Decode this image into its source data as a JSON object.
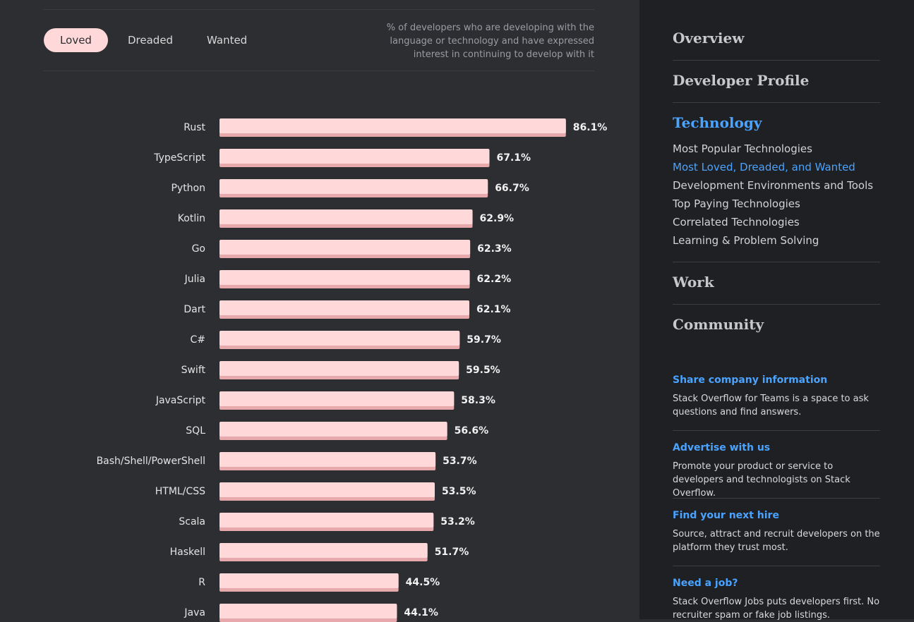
{
  "tabs": [
    {
      "label": "Loved",
      "active": true
    },
    {
      "label": "Dreaded",
      "active": false
    },
    {
      "label": "Wanted",
      "active": false
    }
  ],
  "description": "% of developers who are developing with the language or technology and have expressed interest in continuing to develop with it",
  "chart_data": {
    "type": "bar",
    "orientation": "horizontal",
    "categories": [
      "Rust",
      "TypeScript",
      "Python",
      "Kotlin",
      "Go",
      "Julia",
      "Dart",
      "C#",
      "Swift",
      "JavaScript",
      "SQL",
      "Bash/Shell/PowerShell",
      "HTML/CSS",
      "Scala",
      "Haskell",
      "R",
      "Java"
    ],
    "values": [
      86.1,
      67.1,
      66.7,
      62.9,
      62.3,
      62.2,
      62.1,
      59.7,
      59.5,
      58.3,
      56.6,
      53.7,
      53.5,
      53.2,
      51.7,
      44.5,
      44.1
    ],
    "labels": [
      "86.1%",
      "67.1%",
      "66.7%",
      "62.9%",
      "62.3%",
      "62.2%",
      "62.1%",
      "59.7%",
      "59.5%",
      "58.3%",
      "56.6%",
      "53.7%",
      "53.5%",
      "53.2%",
      "51.7%",
      "44.5%",
      "44.1%"
    ],
    "value_suffix": "%",
    "bar_color": "#ffd9da",
    "bar_shadow_color": "#e7a9ab",
    "xlim": [
      0,
      100
    ],
    "title": "",
    "xlabel": "",
    "ylabel": "",
    "grid": false,
    "legend": "none"
  },
  "sidebar": {
    "sections": [
      {
        "label": "Overview",
        "active": false
      },
      {
        "label": "Developer Profile",
        "active": false
      },
      {
        "label": "Technology",
        "active": true
      },
      {
        "label": "Work",
        "active": false
      },
      {
        "label": "Community",
        "active": false
      }
    ],
    "technology_items": [
      {
        "label": "Most Popular Technologies",
        "active": false
      },
      {
        "label": "Most Loved, Dreaded, and Wanted",
        "active": true
      },
      {
        "label": "Development Environments and Tools",
        "active": false
      },
      {
        "label": "Top Paying Technologies",
        "active": false
      },
      {
        "label": "Correlated Technologies",
        "active": false
      },
      {
        "label": "Learning & Problem Solving",
        "active": false
      }
    ],
    "promos": [
      {
        "title": "Share company information",
        "text": "Stack Overflow for Teams is a space to ask questions and find answers."
      },
      {
        "title": "Advertise with us",
        "text": "Promote your product or service to developers and technologists on Stack Overflow."
      },
      {
        "title": "Find your next hire",
        "text": "Source, attract and recruit developers on the platform they trust most."
      },
      {
        "title": "Need a job?",
        "text": "Stack Overflow Jobs puts developers first. No recruiter spam or fake job listings."
      }
    ]
  },
  "colors": {
    "background": "#2d2e32",
    "sidebar_background": "#1f2023",
    "accent": "#4aa3ff",
    "pill": "#ffd9da"
  }
}
